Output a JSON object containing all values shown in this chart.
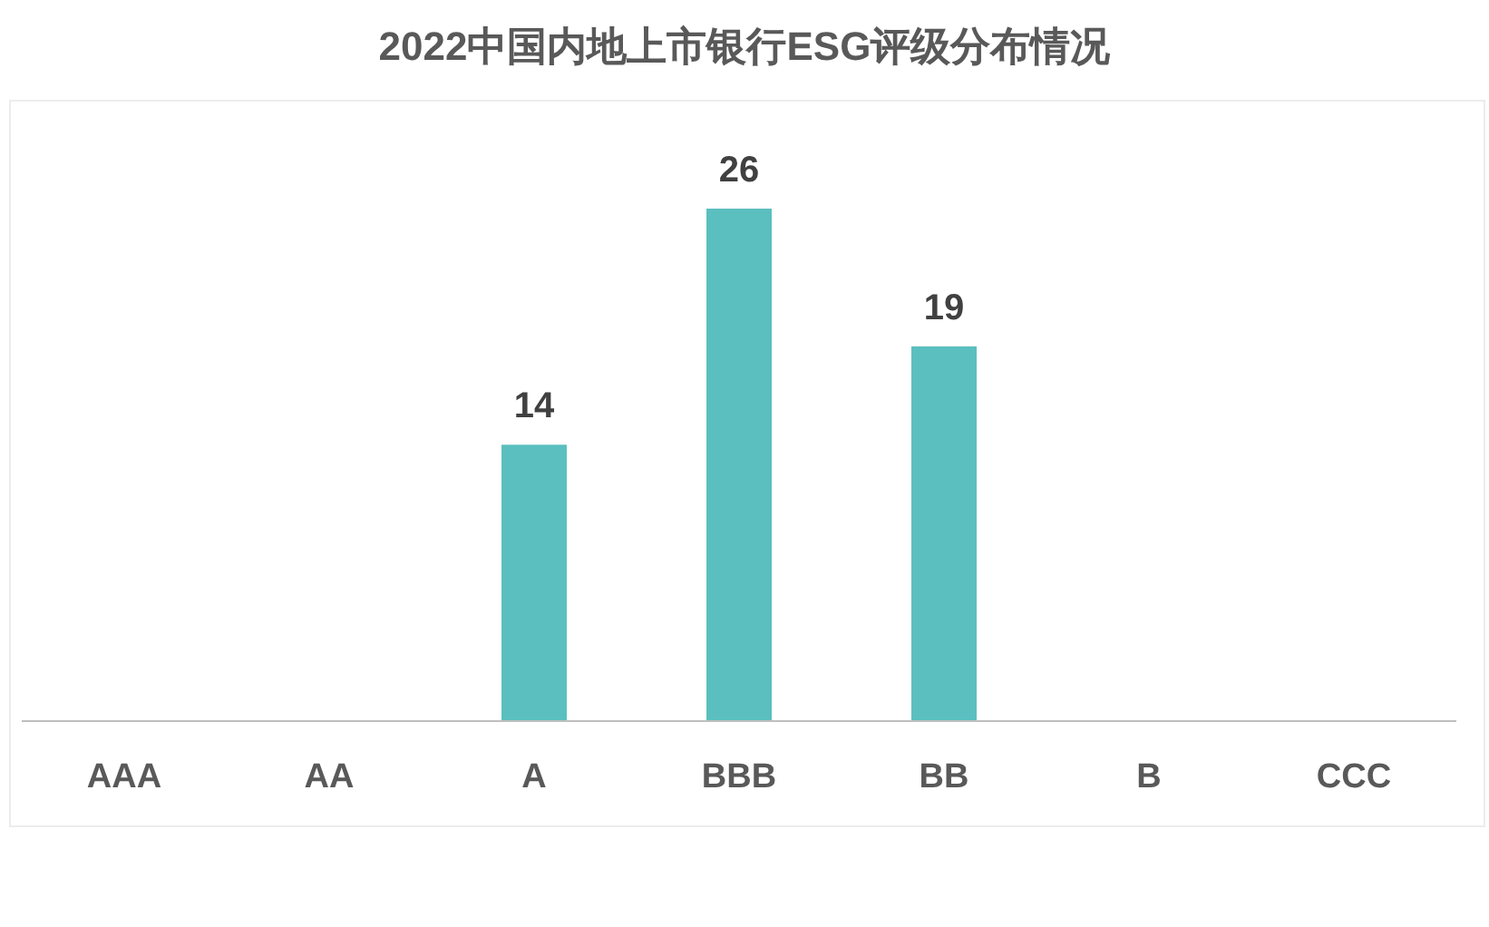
{
  "chart_data": {
    "type": "bar",
    "title": "2022中国内地上市银行ESG评级分布情况",
    "categories": [
      "AAA",
      "AA",
      "A",
      "BBB",
      "BB",
      "B",
      "CCC"
    ],
    "values": [
      0,
      0,
      14,
      26,
      19,
      0,
      0
    ],
    "value_labels": [
      null,
      null,
      "14",
      "26",
      "19",
      null,
      null
    ],
    "color": "#5bbfbf"
  }
}
